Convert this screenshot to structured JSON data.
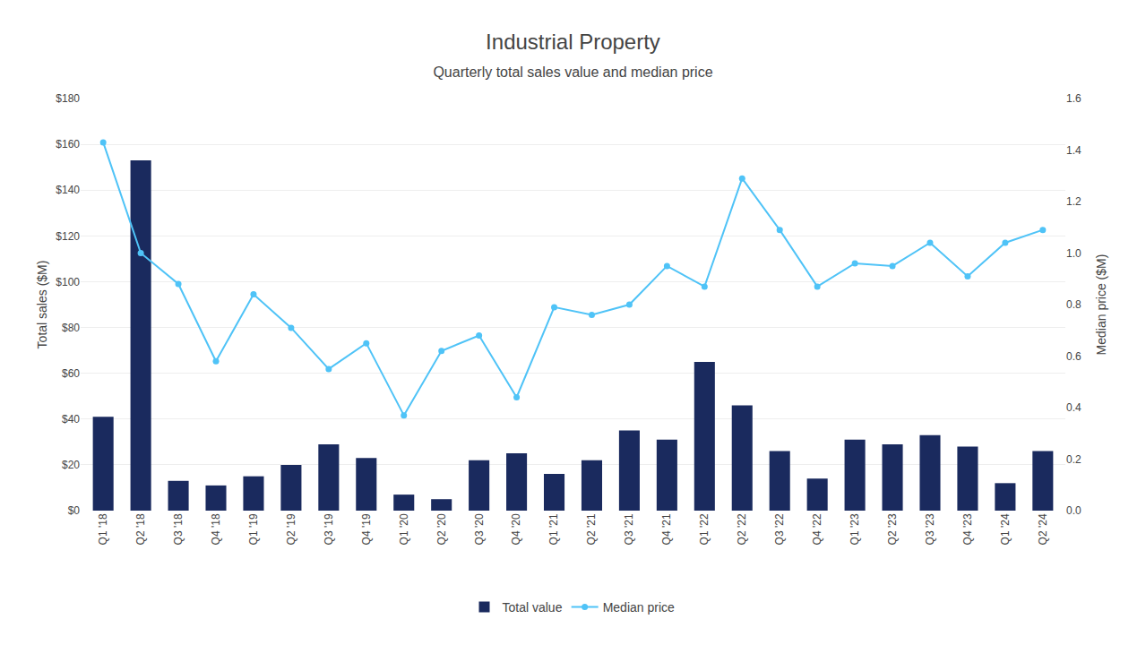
{
  "chart_data": {
    "type": "bar",
    "title": "Industrial Property",
    "subtitle": "Quarterly total sales value and median price",
    "categories": [
      "Q1 '18",
      "Q2 '18",
      "Q3 '18",
      "Q4 '18",
      "Q1 '19",
      "Q2 '19",
      "Q3 '19",
      "Q4 '19",
      "Q1 '20",
      "Q2 '20",
      "Q3 '20",
      "Q4 '20",
      "Q1 '21",
      "Q2 '21",
      "Q3 '21",
      "Q4 '21",
      "Q1 '22",
      "Q2 '22",
      "Q3 '22",
      "Q4 '22",
      "Q1 '23",
      "Q2 '23",
      "Q3 '23",
      "Q4 '23",
      "Q1 '24",
      "Q2 '24"
    ],
    "series": [
      {
        "name": "Total value",
        "type": "bar",
        "color": "#1a2a5e",
        "values": [
          41,
          153,
          13,
          11,
          15,
          20,
          29,
          23,
          7,
          5,
          22,
          25,
          16,
          22,
          35,
          31,
          65,
          46,
          26,
          14,
          31,
          29,
          33,
          28,
          12,
          26
        ]
      },
      {
        "name": "Median price",
        "type": "line",
        "axis": "y2",
        "color": "#4fc3f7",
        "marker": "circle",
        "values": [
          1.43,
          1.0,
          0.88,
          0.58,
          0.84,
          0.71,
          0.55,
          0.65,
          0.37,
          0.62,
          0.68,
          0.44,
          0.79,
          0.76,
          0.8,
          0.95,
          0.87,
          1.29,
          1.09,
          0.87,
          0.96,
          0.95,
          1.04,
          0.91,
          1.04,
          1.09
        ]
      }
    ],
    "ylabel": "Total sales ($M)",
    "y2label": "Median price ($M)",
    "ylim": [
      0,
      180
    ],
    "yticks": [
      {
        "value": 0,
        "label": "$0"
      },
      {
        "value": 20,
        "label": "$20"
      },
      {
        "value": 40,
        "label": "$40"
      },
      {
        "value": 60,
        "label": "$60"
      },
      {
        "value": 80,
        "label": "$80"
      },
      {
        "value": 100,
        "label": "$100"
      },
      {
        "value": 120,
        "label": "$120"
      },
      {
        "value": 140,
        "label": "$140"
      },
      {
        "value": 160,
        "label": "$160"
      },
      {
        "value": 180,
        "label": "$180"
      }
    ],
    "y2lim": [
      0,
      1.6
    ],
    "y2ticks": [
      {
        "value": 0,
        "label": "0.0"
      },
      0.2,
      0.4,
      0.6,
      0.8,
      {
        "value": 1.0,
        "label": "1.0"
      },
      1.2,
      1.4,
      1.6
    ],
    "grid": true,
    "legend": "bottom"
  }
}
